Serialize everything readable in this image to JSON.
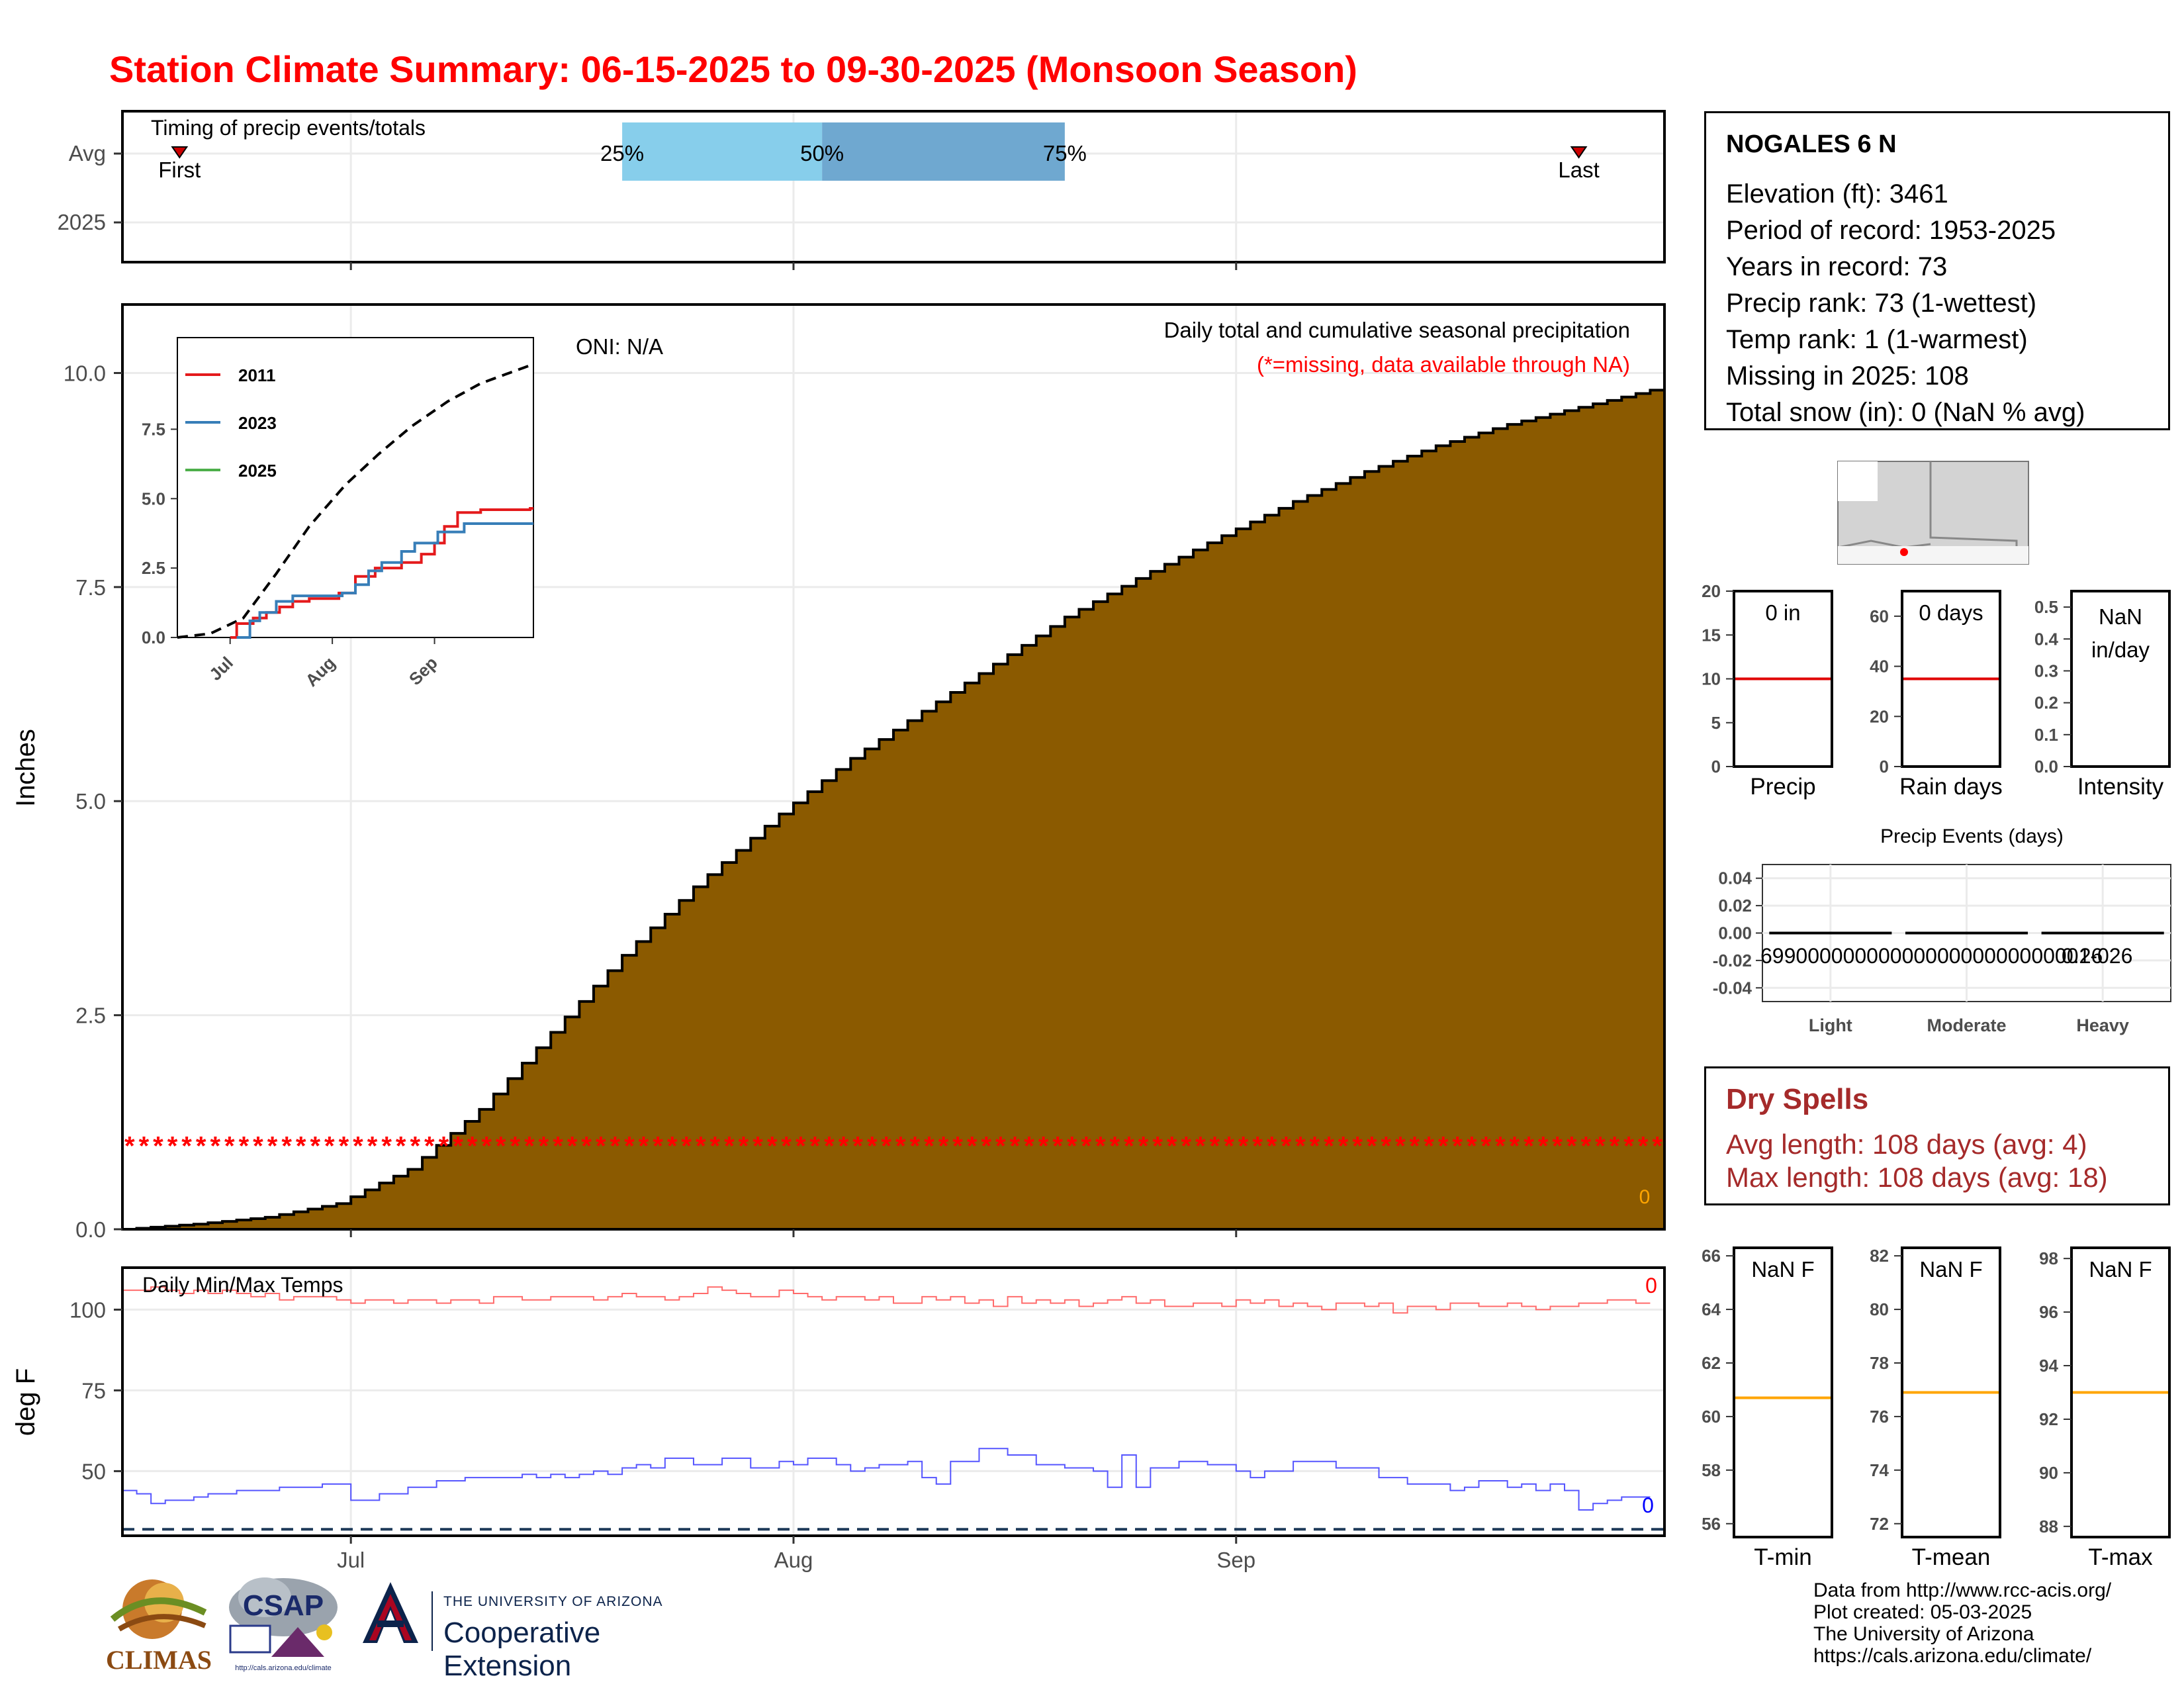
{
  "title": "Station Climate Summary: 06-15-2025 to 09-30-2025 (Monsoon Season)",
  "colors": {
    "title": "#ff0000",
    "cumulative_fill": "#8b5a00",
    "missing_stars": "#ff0000",
    "tmax_line": "#ff6b6b",
    "tmin_line": "#5555ff",
    "dry_spell_text": "#a52a2a",
    "avg_marker_line": "#ff0000",
    "temp_avg_line": "#ffa500",
    "timing_box_light": "#87ceeb",
    "timing_box_dark": "#6fa8d0"
  },
  "station": {
    "name": "NOGALES 6 N",
    "lines": [
      "Elevation (ft): 3461",
      "Period of record: 1953-2025",
      "Years in record: 73",
      "Precip rank: 73 (1-wettest)",
      "Temp rank: 1 (1-warmest)",
      "Missing in 2025: 108",
      "Total snow (in): 0 (NaN % avg)"
    ]
  },
  "dry_spells": {
    "title": "Dry Spells",
    "avg_length": "Avg length: 108 days (avg: 4)",
    "max_length": "Max length: 108 days (avg: 18)"
  },
  "credits": [
    "Data from http://www.rcc-acis.org/",
    "Plot created: 05-03-2025",
    "The University of Arizona",
    "https://cals.arizona.edu/climate/"
  ],
  "logos": {
    "climas": "CLIMAS",
    "csap": "CSAP",
    "csap_url": "http://cals.arizona.edu/climate",
    "ua_line1": "THE UNIVERSITY OF ARIZONA",
    "ua_line2": "Cooperative Extension"
  },
  "chart_data": [
    {
      "id": "timing",
      "type": "bar",
      "panel_label": "Timing of precip events/totals",
      "y_categories": [
        "Avg",
        "2025"
      ],
      "x_tick_labels": [
        "Jul",
        "Aug",
        "Sep"
      ],
      "markers": [
        {
          "label": "First",
          "date": "2025-06-19"
        },
        {
          "label": "Last",
          "date": "2025-09-25"
        }
      ],
      "percentile_box": [
        {
          "label": "25%",
          "date": "2025-07-20"
        },
        {
          "label": "50%",
          "date": "2025-08-03"
        },
        {
          "label": "75%",
          "date": "2025-08-20"
        }
      ],
      "grid": true
    },
    {
      "id": "precip",
      "type": "area",
      "ylabel": "Inches",
      "ylim": [
        0,
        10.8
      ],
      "y_ticks": [
        "0.0",
        "2.5",
        "5.0",
        "7.5",
        "10.0"
      ],
      "x_tick_labels": [
        "Jul",
        "Aug",
        "Sep"
      ],
      "oni": "ONI: N/A",
      "heading": "Daily total and cumulative seasonal precipitation",
      "missing_note": "(*=missing, data available through NA)",
      "missing_marker_y": 1.0,
      "total_label": "0",
      "series_name": "",
      "cumulative_avg": [
        [
          "2025-06-15",
          0.0
        ],
        [
          "2025-06-20",
          0.06
        ],
        [
          "2025-06-25",
          0.14
        ],
        [
          "2025-06-30",
          0.3
        ],
        [
          "2025-07-05",
          0.7
        ],
        [
          "2025-07-10",
          1.4
        ],
        [
          "2025-07-15",
          2.3
        ],
        [
          "2025-07-20",
          3.2
        ],
        [
          "2025-07-25",
          4.0
        ],
        [
          "2025-07-31",
          4.85
        ],
        [
          "2025-08-05",
          5.5
        ],
        [
          "2025-08-10",
          6.05
        ],
        [
          "2025-08-15",
          6.6
        ],
        [
          "2025-08-20",
          7.15
        ],
        [
          "2025-08-25",
          7.6
        ],
        [
          "2025-08-31",
          8.1
        ],
        [
          "2025-09-05",
          8.5
        ],
        [
          "2025-09-10",
          8.85
        ],
        [
          "2025-09-15",
          9.15
        ],
        [
          "2025-09-20",
          9.4
        ],
        [
          "2025-09-25",
          9.6
        ],
        [
          "2025-09-30",
          9.8
        ]
      ],
      "grid": true
    },
    {
      "id": "inset",
      "type": "line",
      "ylim": [
        0,
        10.8
      ],
      "y_ticks": [
        "0.0",
        "2.5",
        "5.0",
        "7.5"
      ],
      "x_tick_labels": [
        "Jul",
        "Aug",
        "Sep"
      ],
      "avg_series": [
        [
          "2025-06-15",
          0.0
        ],
        [
          "2025-06-25",
          0.14
        ],
        [
          "2025-07-05",
          0.7
        ],
        [
          "2025-07-15",
          2.3
        ],
        [
          "2025-07-25",
          4.0
        ],
        [
          "2025-08-05",
          5.5
        ],
        [
          "2025-08-15",
          6.6
        ],
        [
          "2025-08-25",
          7.6
        ],
        [
          "2025-09-05",
          8.5
        ],
        [
          "2025-09-15",
          9.15
        ],
        [
          "2025-09-30",
          9.8
        ]
      ],
      "series": [
        {
          "name": "2011",
          "color": "#e41a1c",
          "values": [
            [
              "2025-07-01",
              0.0
            ],
            [
              "2025-07-03",
              0.5
            ],
            [
              "2025-07-08",
              0.7
            ],
            [
              "2025-07-12",
              0.9
            ],
            [
              "2025-07-16",
              1.1
            ],
            [
              "2025-07-20",
              1.3
            ],
            [
              "2025-07-25",
              1.4
            ],
            [
              "2025-08-03",
              1.6
            ],
            [
              "2025-08-08",
              2.2
            ],
            [
              "2025-08-14",
              2.5
            ],
            [
              "2025-08-22",
              2.7
            ],
            [
              "2025-08-28",
              3.0
            ],
            [
              "2025-09-01",
              3.4
            ],
            [
              "2025-09-04",
              4.0
            ],
            [
              "2025-09-08",
              4.5
            ],
            [
              "2025-09-15",
              4.6
            ],
            [
              "2025-09-30",
              4.65
            ]
          ]
        },
        {
          "name": "2023",
          "color": "#377eb8",
          "values": [
            [
              "2025-07-03",
              0.0
            ],
            [
              "2025-07-07",
              0.6
            ],
            [
              "2025-07-10",
              0.9
            ],
            [
              "2025-07-15",
              1.3
            ],
            [
              "2025-07-20",
              1.5
            ],
            [
              "2025-08-04",
              1.6
            ],
            [
              "2025-08-08",
              1.9
            ],
            [
              "2025-08-12",
              2.4
            ],
            [
              "2025-08-16",
              2.7
            ],
            [
              "2025-08-22",
              3.1
            ],
            [
              "2025-08-26",
              3.4
            ],
            [
              "2025-09-02",
              3.8
            ],
            [
              "2025-09-10",
              4.1
            ],
            [
              "2025-09-30",
              4.1
            ]
          ]
        },
        {
          "name": "2025",
          "color": "#4daf4a",
          "values": []
        }
      ]
    },
    {
      "id": "temps",
      "type": "line",
      "panel_label": "Daily Min/Max Temps",
      "ylabel": "deg F",
      "ylim": [
        30,
        113
      ],
      "y_ticks": [
        "50",
        "75",
        "100"
      ],
      "x_tick_labels": [
        "Jul",
        "Aug",
        "Sep"
      ],
      "tmax_count_label": "0",
      "tmin_count_label": "0",
      "freeze_line": 32,
      "tmax": [
        106,
        106,
        107,
        106,
        105,
        106,
        105,
        106,
        105,
        104,
        105,
        103,
        104,
        104,
        104,
        103,
        102,
        103,
        103,
        102,
        103,
        103,
        102,
        103,
        103,
        102,
        104,
        104,
        103,
        103,
        104,
        104,
        104,
        103,
        104,
        105,
        104,
        104,
        103,
        104,
        105,
        107,
        106,
        105,
        104,
        104,
        106,
        105,
        104,
        103,
        104,
        104,
        103,
        104,
        102,
        102,
        104,
        103,
        104,
        102,
        103,
        101,
        104,
        102,
        103,
        102,
        103,
        101,
        102,
        103,
        104,
        102,
        103,
        101,
        101,
        102,
        102,
        101,
        103,
        102,
        103,
        101,
        102,
        101,
        100,
        102,
        102,
        101,
        102,
        99,
        101,
        101,
        100,
        102,
        102,
        101,
        101,
        102,
        101,
        100,
        101,
        101,
        102,
        102,
        103,
        103,
        102
      ],
      "tmin": [
        44,
        43,
        40,
        41,
        41,
        42,
        43,
        43,
        44,
        44,
        44,
        45,
        45,
        45,
        46,
        46,
        41,
        41,
        43,
        43,
        45,
        45,
        47,
        47,
        48,
        48,
        48,
        48,
        49,
        48,
        49,
        48,
        49,
        50,
        49,
        51,
        52,
        51,
        54,
        54,
        52,
        52,
        54,
        54,
        51,
        51,
        53,
        52,
        54,
        54,
        52,
        50,
        51,
        52,
        52,
        53,
        48,
        46,
        53,
        53,
        57,
        57,
        55,
        55,
        52,
        52,
        51,
        51,
        50,
        45,
        55,
        45,
        51,
        51,
        53,
        53,
        52,
        52,
        50,
        48,
        50,
        50,
        53,
        53,
        53,
        51,
        51,
        51,
        48,
        48,
        46,
        46,
        46,
        44,
        45,
        47,
        47,
        45,
        46,
        44,
        46,
        44,
        38,
        40,
        41,
        42,
        42
      ],
      "grid": true
    },
    {
      "id": "precip_gauge",
      "type": "bar",
      "label": "0 in",
      "xlabel": "Precip",
      "ylim": [
        0,
        20
      ],
      "y_ticks": [
        "0",
        "5",
        "10",
        "15",
        "20"
      ],
      "avg": 10
    },
    {
      "id": "raindays_gauge",
      "type": "bar",
      "label": "0 days",
      "xlabel": "Rain days",
      "ylim": [
        0,
        70
      ],
      "y_ticks": [
        "0",
        "20",
        "40",
        "60"
      ],
      "avg": 35
    },
    {
      "id": "intensity_gauge",
      "type": "bar",
      "label": "NaN in/day",
      "xlabel": "Intensity",
      "ylim": [
        0,
        0.55
      ],
      "y_ticks": [
        "0.0",
        "0.1",
        "0.2",
        "0.3",
        "0.4",
        "0.5"
      ]
    },
    {
      "id": "events",
      "type": "bar",
      "title": "Precip Events (days)",
      "categories": [
        "Light",
        "Moderate",
        "Heavy"
      ],
      "values": [
        0,
        0,
        0
      ],
      "ylim": [
        -0.05,
        0.05
      ],
      "y_ticks": [
        "-0.04",
        "-0.02",
        "0.00",
        "0.02",
        "0.04"
      ],
      "overlap_labels": [
        "6990000000000000000000000001-026",
        "0.26"
      ]
    },
    {
      "id": "tmin_gauge",
      "type": "bar",
      "label": "NaN F",
      "xlabel": "T-min",
      "ylim": [
        55.5,
        66.3
      ],
      "y_ticks": [
        "56",
        "58",
        "60",
        "62",
        "64",
        "66"
      ],
      "avg": 60.7
    },
    {
      "id": "tmean_gauge",
      "type": "bar",
      "label": "NaN F",
      "xlabel": "T-mean",
      "ylim": [
        71.5,
        82.3
      ],
      "y_ticks": [
        "72",
        "74",
        "76",
        "78",
        "80",
        "82"
      ],
      "avg": 76.9
    },
    {
      "id": "tmax_gauge",
      "type": "bar",
      "label": "NaN F",
      "xlabel": "T-max",
      "ylim": [
        87.6,
        98.4
      ],
      "y_ticks": [
        "88",
        "90",
        "92",
        "94",
        "96",
        "98"
      ],
      "avg": 93.0
    }
  ]
}
